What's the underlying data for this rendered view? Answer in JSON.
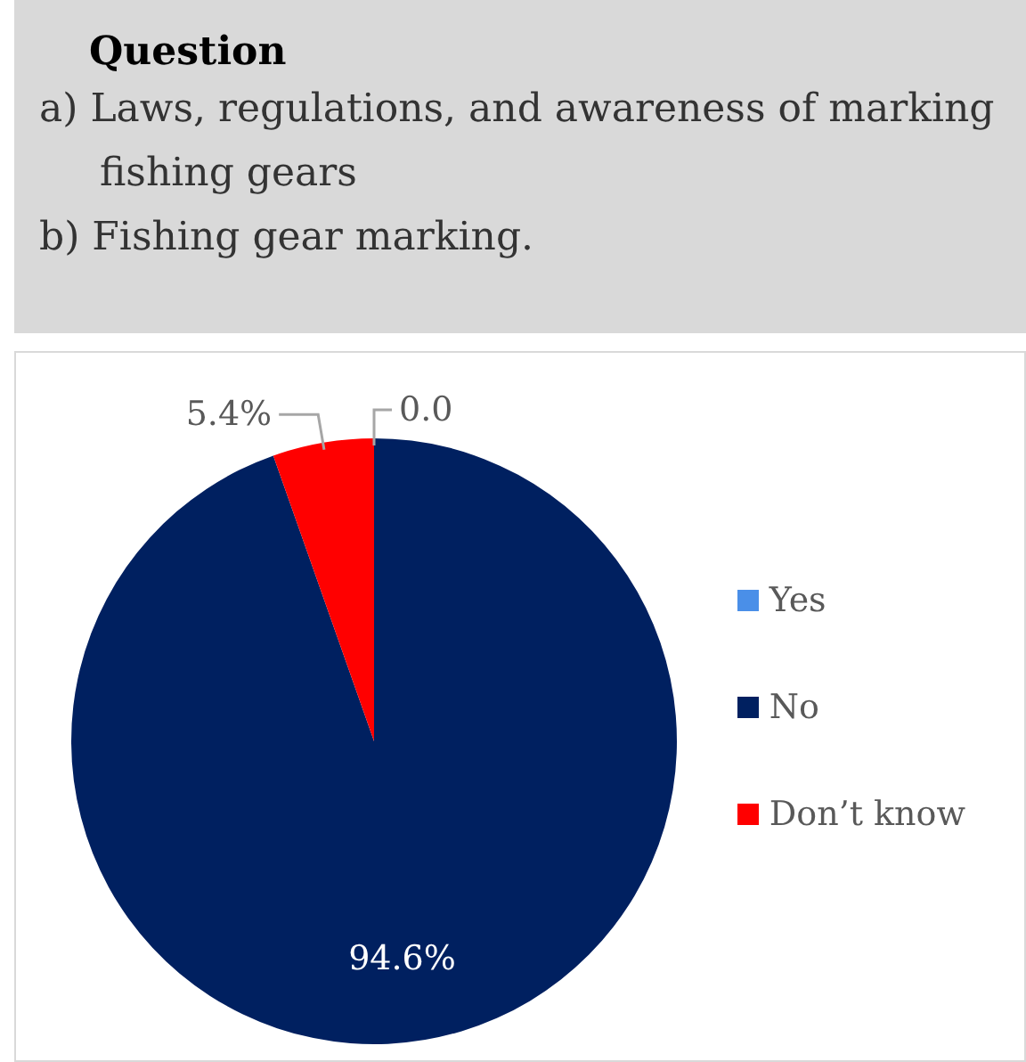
{
  "chart_data": {
    "type": "pie",
    "title": "Question",
    "annotations": [
      "a) Laws, regulations, and awareness of marking fishing gears",
      "b) Fishing gear marking."
    ],
    "categories": [
      "Yes",
      "No",
      "Don’t know"
    ],
    "values": [
      0.0,
      94.6,
      5.4
    ],
    "value_labels": [
      "0.0",
      "94.6%",
      "5.4%"
    ],
    "colors": [
      "#4a8fe8",
      "#002060",
      "#ff0000"
    ],
    "legend": "right"
  }
}
